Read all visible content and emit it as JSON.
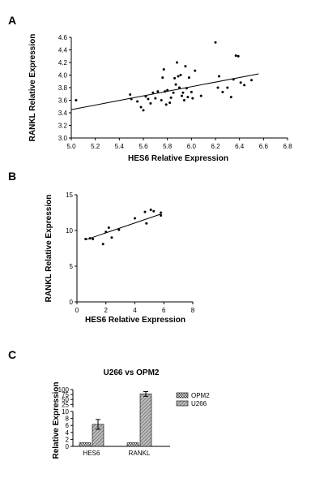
{
  "chart_data": [
    {
      "panel_label": "A",
      "type": "scatter",
      "xlabel": "HES6 Relative Expression",
      "ylabel": "RANKL Relative Expression",
      "xlim": [
        5.0,
        6.8
      ],
      "ylim": [
        3.0,
        4.6
      ],
      "xticks": [
        "5.0",
        "5.2",
        "5.4",
        "5.6",
        "5.8",
        "6.0",
        "6.2",
        "6.4",
        "6.6",
        "6.8"
      ],
      "yticks": [
        "3.0",
        "3.2",
        "3.4",
        "3.6",
        "3.8",
        "4.0",
        "4.2",
        "4.4",
        "4.6"
      ],
      "points": [
        [
          5.04,
          3.6
        ],
        [
          5.49,
          3.69
        ],
        [
          5.5,
          3.62
        ],
        [
          5.55,
          3.58
        ],
        [
          5.58,
          3.49
        ],
        [
          5.6,
          3.44
        ],
        [
          5.62,
          3.66
        ],
        [
          5.64,
          3.62
        ],
        [
          5.66,
          3.55
        ],
        [
          5.68,
          3.72
        ],
        [
          5.7,
          3.63
        ],
        [
          5.72,
          3.74
        ],
        [
          5.75,
          3.6
        ],
        [
          5.76,
          3.96
        ],
        [
          5.77,
          4.09
        ],
        [
          5.78,
          3.74
        ],
        [
          5.79,
          3.53
        ],
        [
          5.8,
          3.76
        ],
        [
          5.82,
          3.56
        ],
        [
          5.83,
          3.64
        ],
        [
          5.85,
          3.72
        ],
        [
          5.86,
          3.95
        ],
        [
          5.87,
          3.85
        ],
        [
          5.88,
          4.2
        ],
        [
          5.89,
          3.98
        ],
        [
          5.9,
          3.8
        ],
        [
          5.91,
          4.0
        ],
        [
          5.92,
          3.67
        ],
        [
          5.93,
          3.72
        ],
        [
          5.94,
          3.6
        ],
        [
          5.95,
          4.14
        ],
        [
          5.96,
          3.79
        ],
        [
          5.97,
          3.65
        ],
        [
          5.98,
          3.96
        ],
        [
          6.0,
          3.73
        ],
        [
          6.01,
          3.63
        ],
        [
          6.03,
          4.07
        ],
        [
          6.08,
          3.67
        ],
        [
          6.2,
          4.52
        ],
        [
          6.22,
          3.8
        ],
        [
          6.23,
          3.98
        ],
        [
          6.26,
          3.73
        ],
        [
          6.3,
          3.8
        ],
        [
          6.33,
          3.65
        ],
        [
          6.35,
          3.93
        ],
        [
          6.37,
          4.31
        ],
        [
          6.39,
          4.3
        ],
        [
          6.41,
          3.88
        ],
        [
          6.44,
          3.84
        ],
        [
          6.5,
          3.92
        ]
      ],
      "trendline": [
        [
          5.0,
          3.45
        ],
        [
          6.56,
          4.02
        ]
      ]
    },
    {
      "panel_label": "B",
      "type": "scatter",
      "xlabel": "HES6 Relative Expression",
      "ylabel": "RANKL Relative Expression",
      "xlim": [
        0,
        8
      ],
      "ylim": [
        0,
        15
      ],
      "xticks": [
        "0",
        "2",
        "4",
        "6",
        "8"
      ],
      "yticks": [
        "0",
        "5",
        "10",
        "15"
      ],
      "points": [
        [
          0.6,
          8.8
        ],
        [
          0.9,
          8.9
        ],
        [
          1.1,
          8.8
        ],
        [
          1.8,
          8.1
        ],
        [
          2.0,
          9.8
        ],
        [
          2.2,
          10.4
        ],
        [
          2.4,
          9.0
        ],
        [
          2.9,
          10.1
        ],
        [
          4.0,
          11.7
        ],
        [
          4.7,
          12.6
        ],
        [
          4.8,
          11.0
        ],
        [
          5.1,
          12.9
        ],
        [
          5.3,
          12.7
        ],
        [
          5.8,
          12.5
        ],
        [
          5.8,
          12.1
        ]
      ],
      "trendline": [
        [
          0.6,
          8.7
        ],
        [
          5.8,
          12.3
        ]
      ]
    },
    {
      "panel_label": "C",
      "type": "bar",
      "title": "U266 vs OPM2",
      "ylabel": "Relative Expression",
      "categories": [
        "HES6",
        "RANKL"
      ],
      "series": [
        {
          "name": "OPM2",
          "values": [
            1,
            1
          ],
          "errors": [
            0,
            0
          ]
        },
        {
          "name": "U266",
          "values": [
            6.3,
            78
          ],
          "errors": [
            1.4,
            12
          ]
        }
      ],
      "axis_break": true,
      "lower_range": [
        0,
        10
      ],
      "upper_range": [
        10,
        100
      ],
      "lower_ticks": [
        "0",
        "2",
        "4",
        "6",
        "8",
        "10"
      ],
      "upper_ticks": [
        "25",
        "50",
        "75",
        "100"
      ],
      "legend_position": "top-right"
    }
  ]
}
